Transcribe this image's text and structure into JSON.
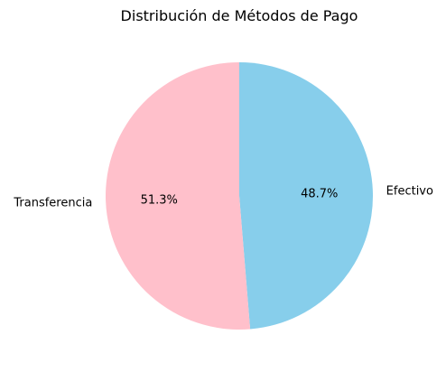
{
  "chart_data": {
    "type": "pie",
    "title": "Distribución de Métodos de Pago",
    "slices": [
      {
        "label": "Efectivo",
        "value": 48.7,
        "pct_label": "48.7%",
        "color": "#87ceeb"
      },
      {
        "label": "Transferencia",
        "value": 51.3,
        "pct_label": "51.3%",
        "color": "#ffc0cb"
      }
    ],
    "start_angle_deg": 90,
    "direction": "clockwise"
  }
}
